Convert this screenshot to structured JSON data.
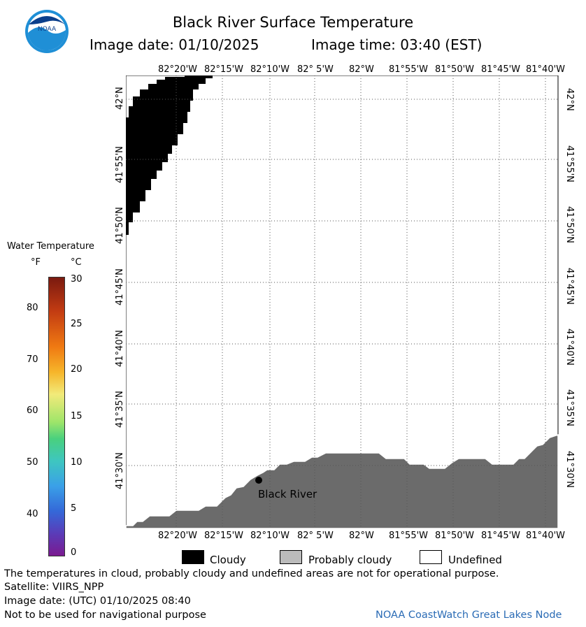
{
  "logo": {
    "text": "NOAA"
  },
  "header": {
    "title": "Black River Surface Temperature",
    "image_date": "Image date: 01/10/2025",
    "image_time": "Image time: 03:40 (EST)"
  },
  "map": {
    "lon_labels": [
      "82°20'W",
      "82°15'W",
      "82°10'W",
      "82° 5'W",
      "82°W",
      "81°55'W",
      "81°50'W",
      "81°45'W",
      "81°40'W"
    ],
    "lat_labels": [
      "42°N",
      "41°55'N",
      "41°50'N",
      "41°45'N",
      "41°40'N",
      "41°35'N",
      "41°30'N"
    ],
    "station_label": "Black River",
    "colors": {
      "cloud": "#000000",
      "land": "#6b6b6b",
      "probably_cloudy": "#bbbbbb",
      "grid": "#555555"
    }
  },
  "colorbar": {
    "title": "Water Temperature",
    "unit_f": "°F",
    "unit_c": "°C",
    "f_ticks": [
      "80",
      "70",
      "60",
      "50",
      "40"
    ],
    "c_ticks": [
      "30",
      "25",
      "20",
      "15",
      "10",
      "5",
      "0"
    ]
  },
  "legend": {
    "cloudy": "Cloudy",
    "probably_cloudy": "Probably cloudy",
    "undefined": "Undefined"
  },
  "footer": {
    "disclaimer": "The temperatures in cloud, probably cloudy and undefined areas are not for operational purpose.",
    "satellite": "Satellite: VIIRS_NPP",
    "utc_date": "Image date: (UTC) 01/10/2025  08:40",
    "nav_warning": "Not to be used for navigational purpose",
    "credit": "NOAA CoastWatch Great Lakes Node"
  }
}
